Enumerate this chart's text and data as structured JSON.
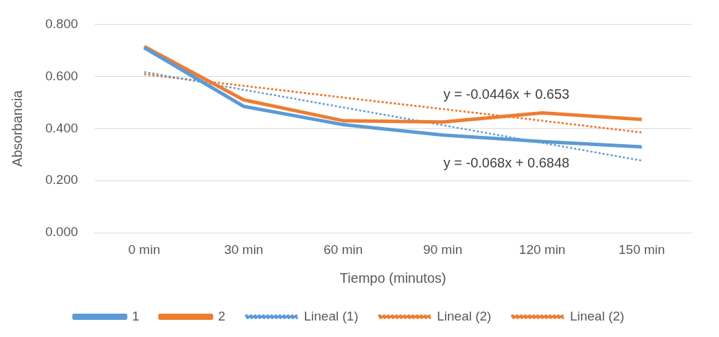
{
  "chart_data": {
    "type": "line",
    "xlabel": "Tiempo (minutos)",
    "ylabel": "Absorbancia",
    "categories": [
      "0 min",
      "30 min",
      "60 min",
      "90 min",
      "120 min",
      "150 min"
    ],
    "series": [
      {
        "name": "1",
        "color": "#5b9bd5",
        "values": [
          0.71,
          0.485,
          0.415,
          0.375,
          0.35,
          0.33
        ],
        "line_style": "solid"
      },
      {
        "name": "2",
        "color": "#ed7d31",
        "values": [
          0.715,
          0.51,
          0.43,
          0.425,
          0.46,
          0.435
        ],
        "line_style": "solid"
      },
      {
        "name": "Lineal (1)",
        "color": "#5b9bd5",
        "values": [
          0.617,
          0.549,
          0.481,
          0.413,
          0.345,
          0.277
        ],
        "line_style": "dotted"
      },
      {
        "name": "Lineal (2)",
        "color": "#ed7d31",
        "values": [
          0.608,
          0.564,
          0.519,
          0.475,
          0.43,
          0.385
        ],
        "line_style": "dotted"
      },
      {
        "name": "Lineal (2)",
        "color": "#ed7d31",
        "values": [
          0.608,
          0.564,
          0.519,
          0.475,
          0.43,
          0.385
        ],
        "line_style": "dotted"
      }
    ],
    "ylim": [
      0,
      0.8
    ],
    "yticks": [
      {
        "value": 0,
        "label": "0.000"
      },
      {
        "value": 0.2,
        "label": "0.200"
      },
      {
        "value": 0.4,
        "label": "0.400"
      },
      {
        "value": 0.6,
        "label": "0.600"
      },
      {
        "value": 0.8,
        "label": "0.800"
      }
    ],
    "annotations": [
      "y = -0.0446x + 0.653",
      "y = -0.068x + 0.6848"
    ],
    "grid": "y",
    "legend": "bottom",
    "marker": "none"
  }
}
